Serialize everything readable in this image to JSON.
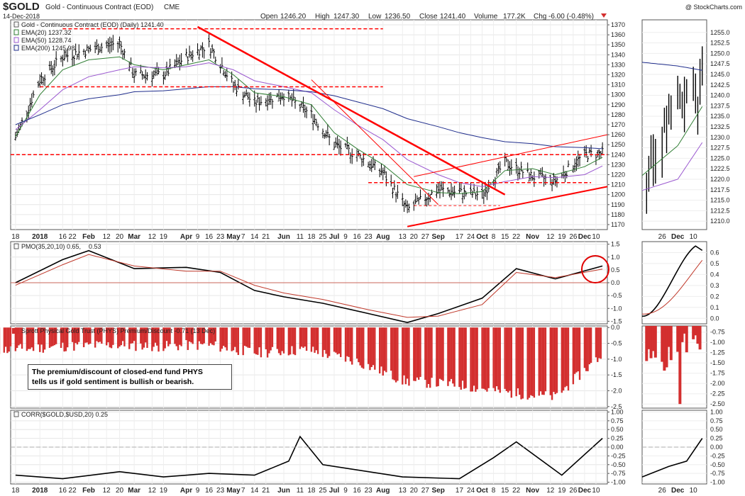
{
  "header": {
    "symbol": "$GOLD",
    "name": "Gold - Continuous Contract (EOD)",
    "exchange": "CME",
    "date": "14-Dec-2018",
    "open_label": "Open",
    "open": "1246.20",
    "high_label": "High",
    "high": "1247.30",
    "low_label": "Low",
    "low": "1236.50",
    "close_label": "Close",
    "close": "1241.40",
    "volume_label": "Volume",
    "volume": "177.2K",
    "chg_label": "Chg",
    "chg": "-6.00 (-0.48%)",
    "watermark": "@ StockCharts.com"
  },
  "price_panel": {
    "title": "Gold - Continuous Contract (EOD) (Daily) 1241.40",
    "legend": [
      {
        "label": "EMA(20) 1237.32",
        "color": "#2e7d32"
      },
      {
        "label": "EMA(50) 1228.74",
        "color": "#9b59d0"
      },
      {
        "label": "EMA(200) 1245.98",
        "color": "#1f2d8c"
      }
    ]
  },
  "pmo_panel": {
    "title": "PMO(35,20,10) 0.65,",
    "signal_value": "0.53",
    "signal_color": "#c0392b"
  },
  "phys_panel": {
    "title": "Sprott Physical Gold Trust (PHYS) Premium/Discount -0.71 (13 Dec)",
    "note": [
      "The premium/discount of closed-end fund PHYS",
      "tells us if gold sentiment is bullish or bearish."
    ]
  },
  "corr_panel": {
    "title": "CORR($GOLD,$USD,20) 0.25"
  },
  "x_labels": [
    "18",
    "2018",
    "16",
    "22",
    "Feb",
    "12",
    "20",
    "Mar",
    "12",
    "19",
    "Apr",
    "9",
    "16",
    "23",
    "May",
    "7",
    "14",
    "21",
    "Jun",
    "11",
    "18",
    "25",
    "Jul",
    "9",
    "16",
    "23",
    "Aug",
    "13",
    "20",
    "27",
    "Sep",
    "17",
    "24",
    "Oct",
    "8",
    "15",
    "22",
    "Nov",
    "12",
    "19",
    "26",
    "Dec",
    "10"
  ],
  "zoom_x_labels": [
    "26",
    "Dec",
    "10"
  ],
  "colors": {
    "price_bar": "#000000",
    "ema20": "#2e7d32",
    "ema50": "#9b59d0",
    "ema200": "#1f2d8c",
    "trendline": "#ff0000",
    "pmo": "#000000",
    "pmo_signal": "#c0392b",
    "histogram": "#d32f2f",
    "corr": "#000000"
  },
  "chart_data": [
    {
      "type": "line",
      "panel": "price",
      "title": "Gold - Continuous Contract (EOD) (Daily) 1241.40",
      "ylim": [
        1165,
        1375
      ],
      "y_ticks": [
        1170,
        1180,
        1190,
        1200,
        1210,
        1220,
        1230,
        1240,
        1250,
        1260,
        1270,
        1280,
        1290,
        1300,
        1310,
        1320,
        1330,
        1340,
        1350,
        1360,
        1370
      ],
      "x": [
        "2017-12-18",
        "2018-01-02",
        "2018-01-16",
        "2018-02-01",
        "2018-02-20",
        "2018-03-01",
        "2018-03-19",
        "2018-04-02",
        "2018-04-16",
        "2018-05-01",
        "2018-05-14",
        "2018-06-01",
        "2018-06-18",
        "2018-07-02",
        "2018-07-16",
        "2018-08-01",
        "2018-08-16",
        "2018-09-04",
        "2018-09-17",
        "2018-10-01",
        "2018-10-15",
        "2018-11-01",
        "2018-11-15",
        "2018-12-03",
        "2018-12-14"
      ],
      "series": [
        {
          "name": "Gold - Continuous Contract (EOD)",
          "values": [
            1257,
            1315,
            1338,
            1345,
            1352,
            1320,
            1320,
            1338,
            1350,
            1310,
            1292,
            1300,
            1280,
            1250,
            1240,
            1222,
            1185,
            1205,
            1202,
            1200,
            1232,
            1218,
            1214,
            1240,
            1241.4
          ]
        },
        {
          "name": "EMA(20) 1237.32",
          "values": [
            1258,
            1300,
            1325,
            1335,
            1338,
            1330,
            1325,
            1330,
            1335,
            1320,
            1302,
            1298,
            1290,
            1262,
            1246,
            1230,
            1210,
            1202,
            1201,
            1203,
            1224,
            1226,
            1220,
            1228,
            1237.32
          ]
        },
        {
          "name": "EMA(50) 1228.74",
          "values": [
            1265,
            1285,
            1305,
            1318,
            1325,
            1328,
            1327,
            1328,
            1332,
            1325,
            1314,
            1308,
            1302,
            1285,
            1270,
            1255,
            1235,
            1220,
            1212,
            1208,
            1213,
            1218,
            1217,
            1220,
            1228.74
          ]
        },
        {
          "name": "EMA(200) 1245.98",
          "values": [
            1270,
            1280,
            1290,
            1296,
            1300,
            1303,
            1304,
            1306,
            1308,
            1308,
            1306,
            1305,
            1303,
            1299,
            1293,
            1286,
            1276,
            1268,
            1262,
            1257,
            1253,
            1251,
            1248,
            1247,
            1245.98
          ]
        }
      ]
    },
    {
      "type": "line",
      "panel": "pmo",
      "title": "PMO(35,20,10) 0.65, 0.53",
      "ylim": [
        -1.6,
        1.6
      ],
      "y_ticks": [
        1.5,
        1.0,
        0.5,
        0.0,
        -0.5,
        -1.0,
        -1.5
      ],
      "x": [
        "2017-12-18",
        "2018-01-16",
        "2018-02-01",
        "2018-03-01",
        "2018-04-02",
        "2018-04-23",
        "2018-05-14",
        "2018-06-01",
        "2018-06-25",
        "2018-07-23",
        "2018-08-16",
        "2018-09-04",
        "2018-10-01",
        "2018-10-22",
        "2018-11-15",
        "2018-12-14"
      ],
      "series": [
        {
          "name": "PMO",
          "values": [
            0.0,
            0.9,
            1.25,
            0.55,
            0.6,
            0.4,
            -0.3,
            -0.55,
            -0.8,
            -1.2,
            -1.55,
            -1.2,
            -0.6,
            0.55,
            0.15,
            0.65
          ]
        },
        {
          "name": "Signal",
          "values": [
            -0.1,
            0.7,
            1.1,
            0.65,
            0.45,
            0.45,
            -0.1,
            -0.4,
            -0.65,
            -1.05,
            -1.35,
            -1.3,
            -0.85,
            0.4,
            0.2,
            0.53
          ]
        }
      ]
    },
    {
      "type": "bar",
      "panel": "phys",
      "title": "Sprott Physical Gold Trust (PHYS) Premium/Discount -0.71 (13 Dec)",
      "ylim": [
        -2.55,
        0.05
      ],
      "y_ticks": [
        0.0,
        -0.5,
        -1.0,
        -1.5,
        -2.0,
        -2.5
      ],
      "x": [
        "2017-12",
        "2018-01",
        "2018-02",
        "2018-03",
        "2018-04",
        "2018-05",
        "2018-06",
        "2018-07",
        "2018-08",
        "2018-09",
        "2018-10",
        "2018-11",
        "2018-12"
      ],
      "values": [
        -0.7,
        -0.6,
        -0.55,
        -0.6,
        -0.55,
        -0.8,
        -0.7,
        -1.05,
        -1.7,
        -1.8,
        -2.05,
        -2.2,
        -0.8
      ]
    },
    {
      "type": "line",
      "panel": "corr",
      "title": "CORR($GOLD,$USD,20) 0.25",
      "ylim": [
        -1.05,
        1.05
      ],
      "y_ticks": [
        1.0,
        0.75,
        0.5,
        0.25,
        0.0,
        -0.25,
        -0.5,
        -0.75,
        -1.0
      ],
      "x": [
        "2017-12-18",
        "2018-01-16",
        "2018-02-20",
        "2018-03-19",
        "2018-04-16",
        "2018-05-14",
        "2018-06-04",
        "2018-06-11",
        "2018-06-25",
        "2018-07-16",
        "2018-08-13",
        "2018-09-17",
        "2018-10-08",
        "2018-10-22",
        "2018-11-19",
        "2018-12-14"
      ],
      "series": [
        {
          "name": "CORR($GOLD,$USD,20)",
          "values": [
            -0.8,
            -0.9,
            -0.7,
            -0.85,
            -0.75,
            -0.8,
            -0.4,
            0.3,
            -0.5,
            -0.65,
            -0.85,
            -0.9,
            -0.3,
            0.15,
            -0.8,
            0.25
          ]
        }
      ]
    }
  ]
}
